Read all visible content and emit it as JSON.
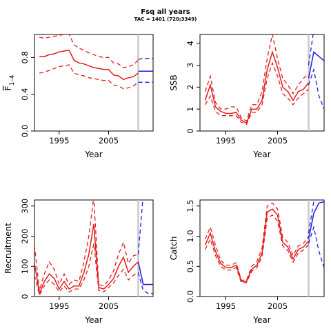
{
  "title": "Fsq all years",
  "subtitle": "TAC = 1401 (720;3349)",
  "colors": {
    "assessment": "#e41a1a",
    "projection": "#1a1ae4",
    "marker": "#c8c8c8",
    "axis": "#000000"
  },
  "chart_data": [
    {
      "id": "fbar",
      "type": "line",
      "xlabel": "Year",
      "ylabel_main": "F",
      "ylabel_sub": "1–4",
      "xlim": [
        1990,
        2014
      ],
      "ylim": [
        0,
        1.05
      ],
      "xticks": [
        1995,
        2005
      ],
      "yticks": [
        0.0,
        0.4,
        0.8
      ],
      "ytick_labels": [
        "0.0",
        "0.4",
        "0.8"
      ],
      "vline": 2011,
      "assessment": {
        "x": [
          1991,
          1992,
          1993,
          1994,
          1995,
          1996,
          1997,
          1998,
          1999,
          2000,
          2001,
          2002,
          2003,
          2004,
          2005,
          2006,
          2007,
          2008,
          2009,
          2010,
          2011
        ],
        "estimate": [
          0.81,
          0.81,
          0.83,
          0.84,
          0.86,
          0.87,
          0.88,
          0.77,
          0.74,
          0.73,
          0.71,
          0.69,
          0.68,
          0.67,
          0.67,
          0.61,
          0.6,
          0.56,
          0.58,
          0.59,
          0.63
        ],
        "upper": [
          1.02,
          1.01,
          1.02,
          1.03,
          1.04,
          1.05,
          1.05,
          0.94,
          0.9,
          0.88,
          0.85,
          0.83,
          0.81,
          0.8,
          0.8,
          0.74,
          0.73,
          0.69,
          0.7,
          0.72,
          0.77
        ],
        "lower": [
          0.63,
          0.64,
          0.66,
          0.68,
          0.7,
          0.71,
          0.72,
          0.63,
          0.61,
          0.6,
          0.58,
          0.57,
          0.56,
          0.55,
          0.55,
          0.5,
          0.49,
          0.46,
          0.47,
          0.49,
          0.53
        ]
      },
      "projection": {
        "x": [
          2011,
          2012,
          2013,
          2014
        ],
        "estimate": [
          0.65,
          0.65,
          0.65,
          0.65
        ],
        "upper": [
          0.78,
          0.79,
          0.79,
          0.79
        ],
        "lower": [
          0.53,
          0.53,
          0.53,
          0.53
        ]
      }
    },
    {
      "id": "ssb",
      "type": "line",
      "xlabel": "Year",
      "ylabel_main": "SSB",
      "xlim": [
        1990,
        2014
      ],
      "ylim": [
        0,
        4.4
      ],
      "xticks": [
        1995,
        2005
      ],
      "yticks": [
        0,
        1,
        2,
        3,
        4
      ],
      "ytick_labels": [
        "0",
        "1",
        "2",
        "3",
        "4"
      ],
      "vline": 2011,
      "assessment": {
        "x": [
          1991,
          1992,
          1993,
          1994,
          1995,
          1996,
          1997,
          1998,
          1999,
          2000,
          2001,
          2002,
          2003,
          2004,
          2005,
          2006,
          2007,
          2008,
          2009,
          2010,
          2011
        ],
        "estimate": [
          1.4,
          2.1,
          1.1,
          0.9,
          0.8,
          0.8,
          0.85,
          0.5,
          0.35,
          1.0,
          1.0,
          1.4,
          2.8,
          3.6,
          2.9,
          2.0,
          1.8,
          1.4,
          1.8,
          1.9,
          2.2
        ],
        "upper": [
          1.8,
          2.5,
          1.3,
          1.0,
          1.0,
          1.1,
          1.1,
          0.6,
          0.45,
          1.2,
          1.2,
          1.8,
          3.3,
          4.4,
          3.3,
          2.4,
          2.1,
          1.7,
          2.1,
          2.4,
          2.6
        ],
        "lower": [
          1.2,
          1.6,
          0.9,
          0.7,
          0.7,
          0.7,
          0.7,
          0.4,
          0.3,
          0.85,
          0.85,
          1.2,
          2.4,
          3.1,
          2.5,
          1.7,
          1.5,
          1.2,
          1.5,
          1.7,
          1.9
        ]
      },
      "projection": {
        "x": [
          2011,
          2012,
          2013,
          2014
        ],
        "estimate": [
          2.4,
          3.6,
          3.4,
          3.2
        ],
        "upper": [
          3.0,
          4.6,
          4.6,
          4.6
        ],
        "lower": [
          2.1,
          2.8,
          1.6,
          1.0
        ]
      }
    },
    {
      "id": "recruitment",
      "type": "line",
      "xlabel": "Year",
      "ylabel_main": "Recruitment",
      "xlim": [
        1990,
        2014
      ],
      "ylim": [
        0,
        320
      ],
      "xticks": [
        1995,
        2005
      ],
      "yticks": [
        0,
        100,
        200,
        300
      ],
      "ytick_labels": [
        "0",
        "100",
        "200",
        "300"
      ],
      "vline": 2011,
      "assessment": {
        "x": [
          1990,
          1991,
          1992,
          1993,
          1994,
          1995,
          1996,
          1997,
          1998,
          1999,
          2000,
          2001,
          2002,
          2003,
          2004,
          2005,
          2006,
          2007,
          2008,
          2009,
          2010,
          2011
        ],
        "estimate": [
          110,
          10,
          50,
          75,
          60,
          25,
          50,
          25,
          35,
          35,
          80,
          140,
          240,
          30,
          25,
          40,
          60,
          100,
          130,
          80,
          100,
          115
        ],
        "upper": [
          170,
          20,
          75,
          115,
          90,
          40,
          75,
          40,
          55,
          50,
          115,
          200,
          330,
          40,
          35,
          55,
          85,
          140,
          180,
          110,
          135,
          140
        ],
        "lower": [
          70,
          5,
          35,
          55,
          40,
          15,
          35,
          15,
          25,
          25,
          55,
          100,
          175,
          20,
          15,
          30,
          45,
          70,
          90,
          55,
          70,
          80
        ]
      },
      "projection": {
        "x": [
          2011,
          2012,
          2013,
          2014
        ],
        "estimate": [
          115,
          40,
          40,
          40
        ],
        "upper": [
          140,
          340,
          340,
          340
        ],
        "lower": [
          80,
          20,
          10,
          10
        ]
      }
    },
    {
      "id": "catch",
      "type": "line",
      "xlabel": "Year",
      "ylabel_main": "Catch",
      "xlim": [
        1990,
        2014
      ],
      "ylim": [
        0,
        1.6
      ],
      "xticks": [
        1995,
        2005
      ],
      "yticks": [
        0.0,
        0.5,
        1.0,
        1.5
      ],
      "ytick_labels": [
        "0.0",
        "0.5",
        "1.0",
        "1.5"
      ],
      "vline": 2011,
      "assessment": {
        "x": [
          1991,
          1992,
          1993,
          1994,
          1995,
          1996,
          1997,
          1998,
          1999,
          2000,
          2001,
          2002,
          2003,
          2004,
          2005,
          2006,
          2007,
          2008,
          2009,
          2010,
          2011
        ],
        "estimate": [
          0.85,
          1.05,
          0.75,
          0.55,
          0.48,
          0.48,
          0.52,
          0.25,
          0.25,
          0.45,
          0.52,
          0.72,
          1.4,
          1.45,
          1.35,
          0.9,
          0.82,
          0.62,
          0.78,
          0.82,
          0.92
        ],
        "upper": [
          0.95,
          1.15,
          0.85,
          0.6,
          0.52,
          0.52,
          0.56,
          0.27,
          0.27,
          0.5,
          0.58,
          0.8,
          1.5,
          1.55,
          1.45,
          0.98,
          0.9,
          0.68,
          0.84,
          0.88,
          1.0
        ],
        "lower": [
          0.78,
          0.95,
          0.68,
          0.5,
          0.44,
          0.44,
          0.48,
          0.23,
          0.23,
          0.42,
          0.48,
          0.66,
          1.3,
          1.35,
          1.25,
          0.84,
          0.76,
          0.57,
          0.72,
          0.77,
          0.86
        ]
      },
      "projection": {
        "x": [
          2011,
          2012,
          2013,
          2014
        ],
        "estimate": [
          0.95,
          1.38,
          1.55,
          1.57
        ],
        "upper": [
          1.05,
          1.58,
          1.62,
          1.62
        ],
        "lower": [
          0.88,
          1.15,
          0.75,
          0.48
        ]
      }
    }
  ]
}
